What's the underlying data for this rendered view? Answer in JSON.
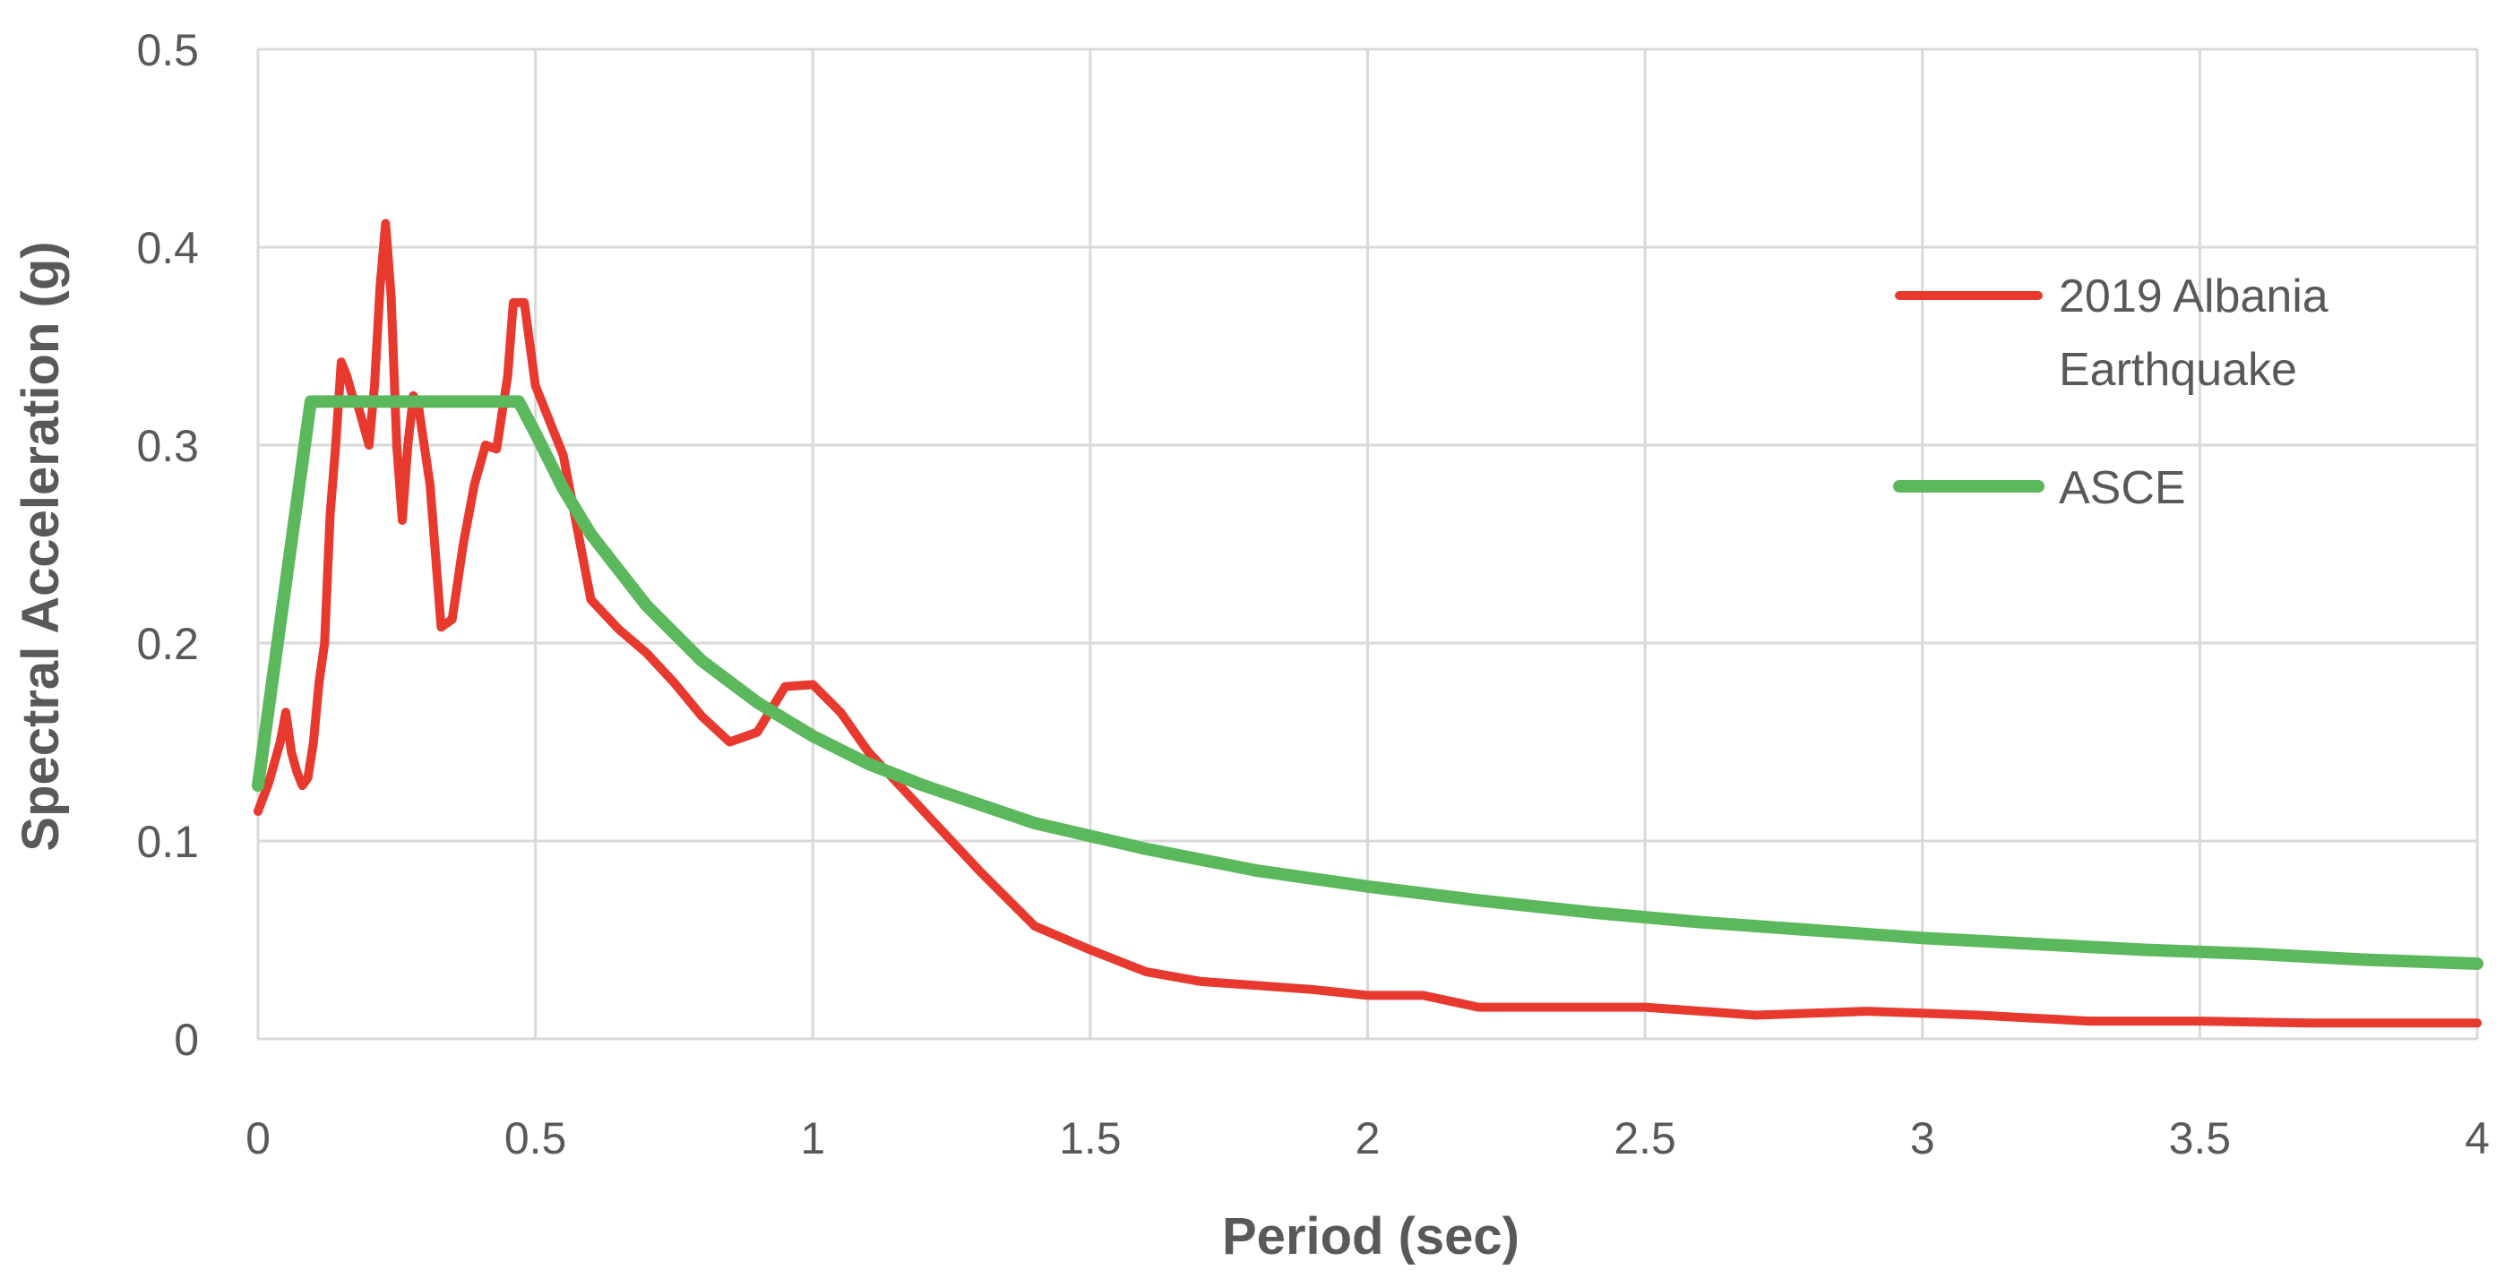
{
  "chart_data": {
    "type": "line",
    "title": "",
    "xlabel": "Period (sec)",
    "ylabel": "Spectral Acceleration (g)",
    "xlim": [
      0,
      4
    ],
    "ylim": [
      0,
      0.5
    ],
    "x_ticks": [
      "0",
      "0.5",
      "1",
      "1.5",
      "2",
      "2.5",
      "3",
      "3.5",
      "4"
    ],
    "y_ticks": [
      "0",
      "0.1",
      "0.2",
      "0.3",
      "0.4",
      "0.5"
    ],
    "grid": true,
    "legend_position": "right",
    "series": [
      {
        "name_lines": [
          "2019 Albania",
          "Earthquake"
        ],
        "color": "#e8392f",
        "points": [
          [
            0,
            0.115
          ],
          [
            0.02,
            0.13
          ],
          [
            0.04,
            0.15
          ],
          [
            0.05,
            0.165
          ],
          [
            0.06,
            0.145
          ],
          [
            0.07,
            0.135
          ],
          [
            0.08,
            0.128
          ],
          [
            0.09,
            0.132
          ],
          [
            0.1,
            0.15
          ],
          [
            0.11,
            0.18
          ],
          [
            0.12,
            0.2
          ],
          [
            0.13,
            0.265
          ],
          [
            0.14,
            0.3
          ],
          [
            0.15,
            0.342
          ],
          [
            0.16,
            0.335
          ],
          [
            0.17,
            0.325
          ],
          [
            0.18,
            0.32
          ],
          [
            0.19,
            0.31
          ],
          [
            0.2,
            0.3
          ],
          [
            0.21,
            0.33
          ],
          [
            0.22,
            0.38
          ],
          [
            0.23,
            0.412
          ],
          [
            0.24,
            0.375
          ],
          [
            0.25,
            0.3
          ],
          [
            0.26,
            0.262
          ],
          [
            0.27,
            0.3
          ],
          [
            0.28,
            0.325
          ],
          [
            0.29,
            0.318
          ],
          [
            0.31,
            0.28
          ],
          [
            0.33,
            0.208
          ],
          [
            0.35,
            0.212
          ],
          [
            0.37,
            0.25
          ],
          [
            0.39,
            0.28
          ],
          [
            0.41,
            0.3
          ],
          [
            0.43,
            0.298
          ],
          [
            0.45,
            0.335
          ],
          [
            0.46,
            0.372
          ],
          [
            0.48,
            0.372
          ],
          [
            0.5,
            0.33
          ],
          [
            0.55,
            0.295
          ],
          [
            0.6,
            0.222
          ],
          [
            0.65,
            0.207
          ],
          [
            0.7,
            0.195
          ],
          [
            0.75,
            0.18
          ],
          [
            0.8,
            0.163
          ],
          [
            0.85,
            0.15
          ],
          [
            0.9,
            0.155
          ],
          [
            0.95,
            0.178
          ],
          [
            1.0,
            0.179
          ],
          [
            1.05,
            0.165
          ],
          [
            1.1,
            0.145
          ],
          [
            1.2,
            0.115
          ],
          [
            1.3,
            0.085
          ],
          [
            1.4,
            0.057
          ],
          [
            1.5,
            0.045
          ],
          [
            1.6,
            0.034
          ],
          [
            1.7,
            0.029
          ],
          [
            1.8,
            0.027
          ],
          [
            1.9,
            0.025
          ],
          [
            2.0,
            0.022
          ],
          [
            2.1,
            0.022
          ],
          [
            2.2,
            0.016
          ],
          [
            2.3,
            0.016
          ],
          [
            2.5,
            0.016
          ],
          [
            2.7,
            0.012
          ],
          [
            2.9,
            0.014
          ],
          [
            3.1,
            0.012
          ],
          [
            3.3,
            0.009
          ],
          [
            3.5,
            0.009
          ],
          [
            3.7,
            0.008
          ],
          [
            4.0,
            0.008
          ]
        ]
      },
      {
        "name_lines": [
          "ASCE"
        ],
        "color": "#5cb85c",
        "points": [
          [
            0,
            0.128
          ],
          [
            0.095,
            0.322
          ],
          [
            0.47,
            0.322
          ],
          [
            0.5,
            0.306
          ],
          [
            0.55,
            0.278
          ],
          [
            0.6,
            0.255
          ],
          [
            0.7,
            0.219
          ],
          [
            0.8,
            0.191
          ],
          [
            0.9,
            0.17
          ],
          [
            1.0,
            0.153
          ],
          [
            1.1,
            0.139
          ],
          [
            1.2,
            0.128
          ],
          [
            1.4,
            0.109
          ],
          [
            1.6,
            0.096
          ],
          [
            1.8,
            0.085
          ],
          [
            2.0,
            0.077
          ],
          [
            2.2,
            0.07
          ],
          [
            2.4,
            0.064
          ],
          [
            2.6,
            0.059
          ],
          [
            2.8,
            0.055
          ],
          [
            3.0,
            0.051
          ],
          [
            3.2,
            0.048
          ],
          [
            3.4,
            0.045
          ],
          [
            3.6,
            0.043
          ],
          [
            3.8,
            0.04
          ],
          [
            4.0,
            0.038
          ]
        ]
      }
    ]
  }
}
